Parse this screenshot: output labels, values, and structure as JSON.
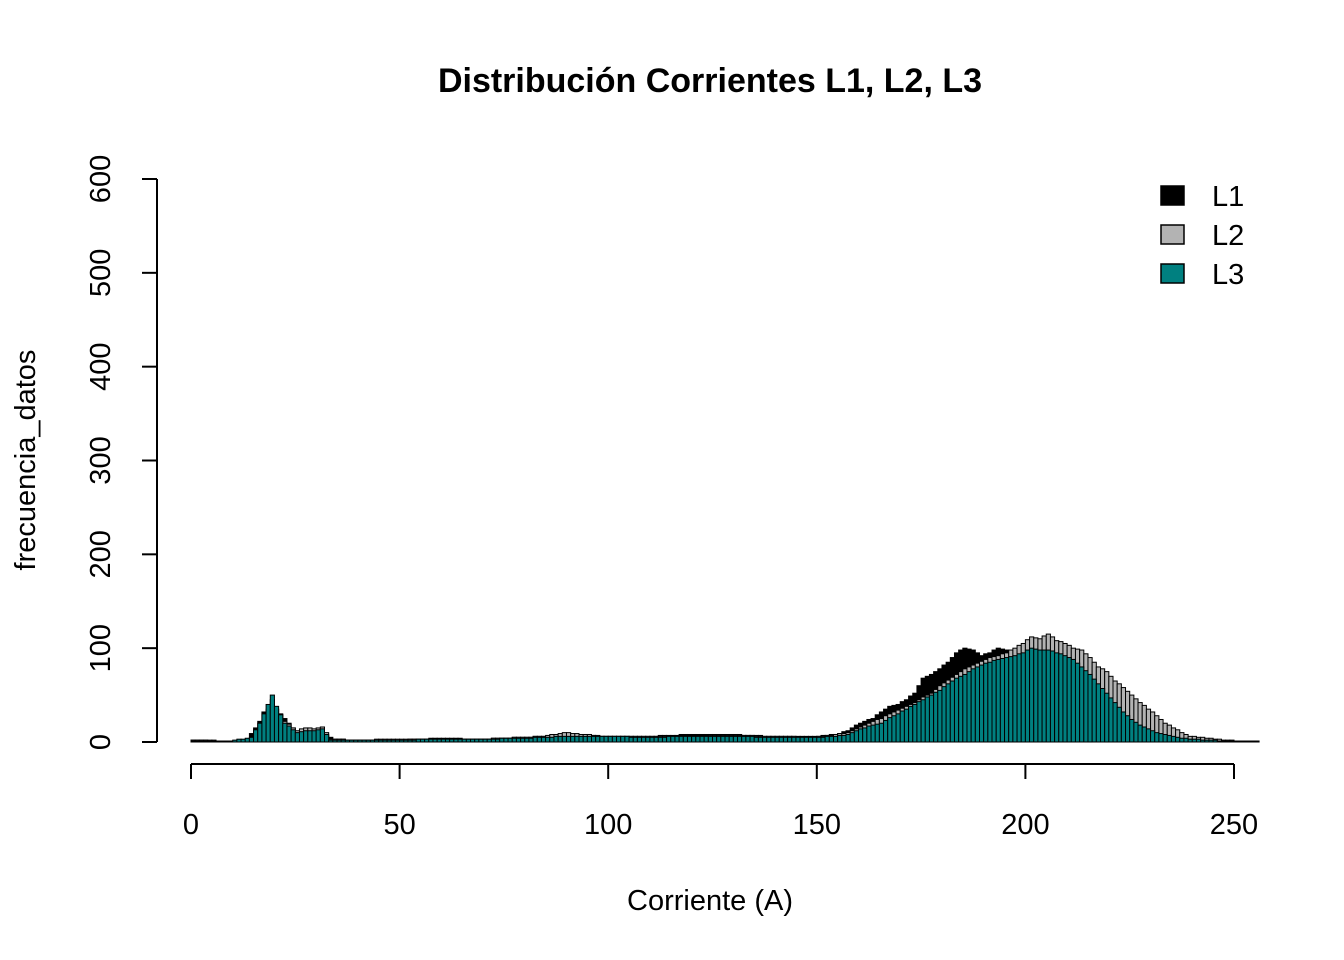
{
  "chart_data": {
    "type": "bar",
    "title": "Distribución Corrientes L1, L2, L3",
    "xlabel": "Corriente (A)",
    "ylabel": "frecuencia_datos",
    "xlim": [
      0,
      256
    ],
    "ylim": [
      0,
      600
    ],
    "x_ticks": [
      "0",
      "50",
      "100",
      "150",
      "200",
      "250"
    ],
    "y_ticks": [
      "0",
      "100",
      "200",
      "300",
      "400",
      "500",
      "600"
    ],
    "grid": false,
    "legend_position": "top-right",
    "series": [
      {
        "name": "L1",
        "color": "#000000",
        "points": [
          [
            2,
            2
          ],
          [
            6,
            1
          ],
          [
            10,
            1
          ],
          [
            14,
            2
          ],
          [
            17,
            22
          ],
          [
            18,
            32
          ],
          [
            19,
            30
          ],
          [
            20,
            40
          ],
          [
            22,
            30
          ],
          [
            24,
            20
          ],
          [
            26,
            10
          ],
          [
            30,
            12
          ],
          [
            35,
            3
          ],
          [
            40,
            2
          ],
          [
            50,
            2
          ],
          [
            60,
            4
          ],
          [
            70,
            3
          ],
          [
            80,
            5
          ],
          [
            85,
            6
          ],
          [
            90,
            8
          ],
          [
            100,
            6
          ],
          [
            110,
            6
          ],
          [
            120,
            8
          ],
          [
            130,
            8
          ],
          [
            140,
            6
          ],
          [
            150,
            6
          ],
          [
            155,
            8
          ],
          [
            158,
            12
          ],
          [
            160,
            18
          ],
          [
            162,
            22
          ],
          [
            164,
            25
          ],
          [
            166,
            32
          ],
          [
            168,
            38
          ],
          [
            170,
            40
          ],
          [
            172,
            45
          ],
          [
            174,
            52
          ],
          [
            176,
            68
          ],
          [
            178,
            72
          ],
          [
            180,
            78
          ],
          [
            182,
            85
          ],
          [
            184,
            95
          ],
          [
            186,
            100
          ],
          [
            188,
            98
          ],
          [
            190,
            92
          ],
          [
            192,
            95
          ],
          [
            194,
            100
          ],
          [
            196,
            98
          ],
          [
            198,
            95
          ],
          [
            200,
            100
          ],
          [
            202,
            102
          ],
          [
            204,
            98
          ],
          [
            206,
            100
          ],
          [
            208,
            95
          ],
          [
            210,
            90
          ],
          [
            212,
            88
          ],
          [
            214,
            82
          ],
          [
            216,
            75
          ],
          [
            218,
            65
          ],
          [
            220,
            55
          ],
          [
            222,
            48
          ],
          [
            224,
            42
          ],
          [
            226,
            35
          ],
          [
            228,
            28
          ],
          [
            230,
            22
          ],
          [
            232,
            16
          ],
          [
            234,
            12
          ],
          [
            236,
            8
          ],
          [
            238,
            6
          ],
          [
            240,
            4
          ],
          [
            244,
            2
          ],
          [
            248,
            1
          ],
          [
            252,
            1
          ],
          [
            256,
            1
          ]
        ]
      },
      {
        "name": "L2",
        "color": "#b3b3b3",
        "points": [
          [
            2,
            2
          ],
          [
            10,
            1
          ],
          [
            15,
            3
          ],
          [
            18,
            18
          ],
          [
            19,
            35
          ],
          [
            20,
            45
          ],
          [
            21,
            35
          ],
          [
            23,
            22
          ],
          [
            26,
            12
          ],
          [
            28,
            15
          ],
          [
            30,
            14
          ],
          [
            32,
            16
          ],
          [
            34,
            3
          ],
          [
            40,
            2
          ],
          [
            50,
            3
          ],
          [
            60,
            3
          ],
          [
            70,
            3
          ],
          [
            80,
            5
          ],
          [
            85,
            6
          ],
          [
            90,
            10
          ],
          [
            100,
            6
          ],
          [
            110,
            6
          ],
          [
            120,
            6
          ],
          [
            130,
            7
          ],
          [
            140,
            6
          ],
          [
            150,
            5
          ],
          [
            155,
            8
          ],
          [
            158,
            10
          ],
          [
            160,
            14
          ],
          [
            162,
            18
          ],
          [
            164,
            22
          ],
          [
            166,
            25
          ],
          [
            168,
            30
          ],
          [
            170,
            34
          ],
          [
            172,
            38
          ],
          [
            174,
            42
          ],
          [
            176,
            48
          ],
          [
            178,
            52
          ],
          [
            180,
            60
          ],
          [
            182,
            66
          ],
          [
            184,
            72
          ],
          [
            186,
            78
          ],
          [
            188,
            82
          ],
          [
            190,
            86
          ],
          [
            192,
            90
          ],
          [
            194,
            92
          ],
          [
            196,
            95
          ],
          [
            198,
            100
          ],
          [
            200,
            105
          ],
          [
            202,
            112
          ],
          [
            204,
            110
          ],
          [
            206,
            115
          ],
          [
            208,
            108
          ],
          [
            210,
            105
          ],
          [
            212,
            100
          ],
          [
            214,
            98
          ],
          [
            216,
            90
          ],
          [
            218,
            80
          ],
          [
            220,
            75
          ],
          [
            222,
            65
          ],
          [
            224,
            58
          ],
          [
            226,
            50
          ],
          [
            228,
            42
          ],
          [
            230,
            35
          ],
          [
            232,
            28
          ],
          [
            234,
            20
          ],
          [
            236,
            15
          ],
          [
            238,
            10
          ],
          [
            240,
            6
          ],
          [
            244,
            4
          ],
          [
            248,
            2
          ],
          [
            252,
            1
          ],
          [
            256,
            1
          ]
        ]
      },
      {
        "name": "L3",
        "color": "#008080",
        "points": [
          [
            2,
            1
          ],
          [
            10,
            1
          ],
          [
            15,
            5
          ],
          [
            17,
            20
          ],
          [
            18,
            30
          ],
          [
            19,
            40
          ],
          [
            20,
            50
          ],
          [
            21,
            38
          ],
          [
            23,
            20
          ],
          [
            26,
            10
          ],
          [
            28,
            12
          ],
          [
            30,
            12
          ],
          [
            32,
            14
          ],
          [
            34,
            2
          ],
          [
            40,
            2
          ],
          [
            50,
            2
          ],
          [
            60,
            3
          ],
          [
            70,
            3
          ],
          [
            80,
            4
          ],
          [
            90,
            6
          ],
          [
            100,
            6
          ],
          [
            110,
            5
          ],
          [
            120,
            6
          ],
          [
            130,
            6
          ],
          [
            140,
            5
          ],
          [
            150,
            5
          ],
          [
            155,
            6
          ],
          [
            158,
            8
          ],
          [
            160,
            12
          ],
          [
            162,
            15
          ],
          [
            164,
            18
          ],
          [
            166,
            20
          ],
          [
            168,
            26
          ],
          [
            170,
            30
          ],
          [
            172,
            35
          ],
          [
            174,
            40
          ],
          [
            176,
            45
          ],
          [
            178,
            50
          ],
          [
            180,
            55
          ],
          [
            182,
            62
          ],
          [
            184,
            68
          ],
          [
            186,
            72
          ],
          [
            188,
            78
          ],
          [
            190,
            82
          ],
          [
            192,
            85
          ],
          [
            194,
            88
          ],
          [
            196,
            90
          ],
          [
            198,
            92
          ],
          [
            200,
            95
          ],
          [
            202,
            100
          ],
          [
            204,
            98
          ],
          [
            206,
            98
          ],
          [
            208,
            95
          ],
          [
            210,
            92
          ],
          [
            212,
            88
          ],
          [
            214,
            80
          ],
          [
            216,
            72
          ],
          [
            218,
            62
          ],
          [
            220,
            52
          ],
          [
            222,
            42
          ],
          [
            224,
            32
          ],
          [
            226,
            24
          ],
          [
            228,
            18
          ],
          [
            230,
            14
          ],
          [
            232,
            10
          ],
          [
            234,
            8
          ],
          [
            236,
            6
          ],
          [
            238,
            4
          ],
          [
            240,
            3
          ],
          [
            244,
            2
          ],
          [
            248,
            1
          ],
          [
            252,
            1
          ],
          [
            256,
            1
          ]
        ]
      }
    ]
  }
}
